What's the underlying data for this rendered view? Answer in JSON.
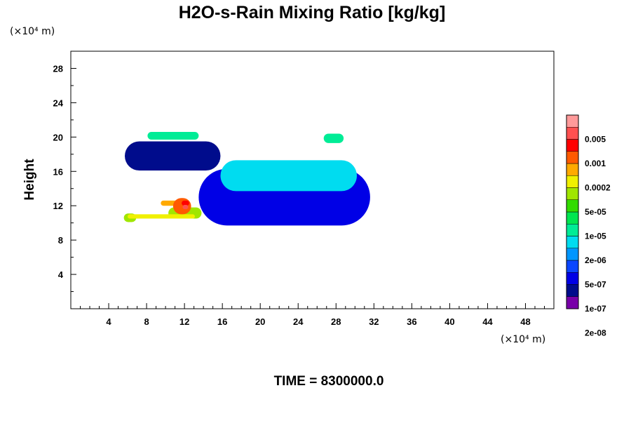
{
  "chart_data": {
    "type": "heatmap",
    "title": "H2O-s-Rain Mixing Ratio [kg/kg]",
    "xlabel": "",
    "ylabel": "Height",
    "x_unit": "(×10⁴ m)",
    "y_unit": "(×10⁴ m)",
    "xlim": [
      0,
      51
    ],
    "ylim": [
      0,
      30
    ],
    "x_ticks": [
      4,
      8,
      12,
      16,
      20,
      24,
      28,
      32,
      36,
      40,
      44,
      48
    ],
    "y_ticks": [
      4,
      8,
      12,
      16,
      20,
      24,
      28
    ],
    "time_label": "TIME = 8300000.0",
    "legend": {
      "placement": "right",
      "labels": [
        "0.005",
        "0.001",
        "0.0002",
        "5e-05",
        "1e-05",
        "2e-06",
        "5e-07",
        "1e-07",
        "2e-08"
      ],
      "colors": [
        "#7800a8",
        "#000c8c",
        "#0000e6",
        "#0a46ff",
        "#0096ff",
        "#00dcf0",
        "#00ec96",
        "#00e650",
        "#32dc00",
        "#a0e600",
        "#f0f000",
        "#ffaa00",
        "#ff5a00",
        "#ff0000",
        "#ff5050",
        "#ff9a9a"
      ]
    },
    "regions": [
      {
        "x": [
          5.7,
          15.8
        ],
        "y": [
          16.1,
          19.5
        ],
        "level": 1
      },
      {
        "x": [
          13.5,
          31.6
        ],
        "y": [
          9.7,
          16.3
        ],
        "level": 2
      },
      {
        "x": [
          15.8,
          30.2
        ],
        "y": [
          13.7,
          17.3
        ],
        "level": 5
      },
      {
        "x": [
          26.7,
          28.8
        ],
        "y": [
          19.3,
          20.4
        ],
        "level": 6
      },
      {
        "x": [
          8.1,
          13.5
        ],
        "y": [
          19.7,
          20.6
        ],
        "level": 6
      },
      {
        "x": [
          10.3,
          13.8
        ],
        "y": [
          10.5,
          11.8
        ],
        "level": 9
      },
      {
        "x": [
          5.6,
          6.9
        ],
        "y": [
          10.1,
          11.1
        ],
        "level": 9
      },
      {
        "x": [
          6.0,
          13.1
        ],
        "y": [
          10.5,
          11.0
        ],
        "level": 10
      },
      {
        "x": [
          9.5,
          11.8
        ],
        "y": [
          12.0,
          12.6
        ],
        "level": 11
      },
      {
        "x": [
          10.8,
          12.7
        ],
        "y": [
          11.0,
          12.9
        ],
        "level": 12
      },
      {
        "x": [
          11.7,
          12.5
        ],
        "y": [
          12.0,
          12.6
        ],
        "level": 13
      },
      {
        "x": [
          11.8,
          12.4
        ],
        "y": [
          11.6,
          12.1
        ],
        "level": 14
      }
    ]
  }
}
